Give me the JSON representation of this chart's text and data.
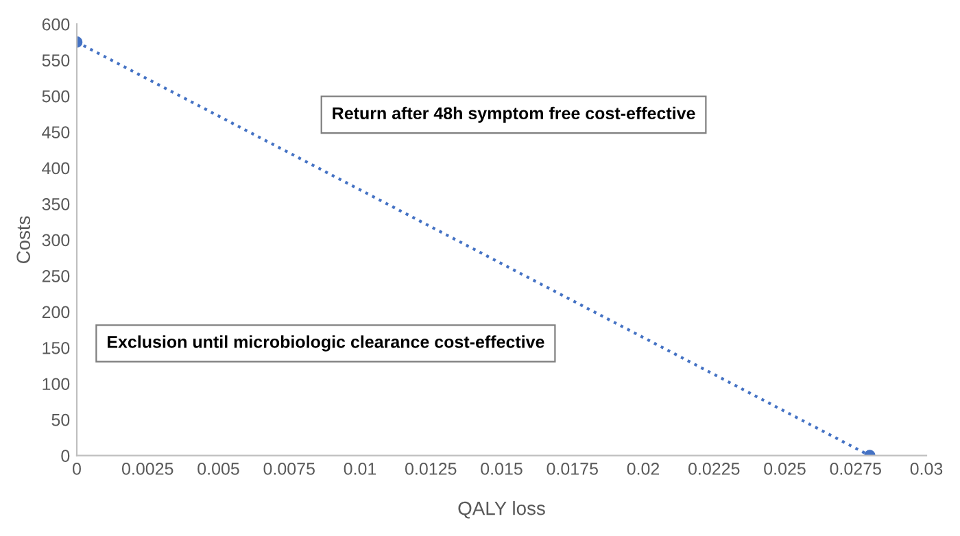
{
  "chart_data": {
    "type": "line",
    "xlabel": "QALY loss",
    "ylabel": "Costs",
    "series": [
      {
        "x": [
          0,
          0.028
        ],
        "values": [
          575,
          0
        ],
        "color": "#4472c4"
      }
    ],
    "marker": "circle",
    "line_style": "dotted",
    "grid": false,
    "legend": false,
    "xlim": [
      0,
      0.03
    ],
    "xticks": [
      0,
      0.0025,
      0.005,
      0.0075,
      0.01,
      0.0125,
      0.015,
      0.0175,
      0.02,
      0.0225,
      0.025,
      0.0275,
      0.03
    ],
    "ylim": [
      0,
      600
    ],
    "yticks": [
      0,
      50,
      100,
      150,
      200,
      250,
      300,
      350,
      400,
      450,
      500,
      550,
      600
    ],
    "annotations": [
      "Return after 48h symptom free cost-effective",
      "Exclusion until microbiologic clearance cost-effective"
    ]
  }
}
